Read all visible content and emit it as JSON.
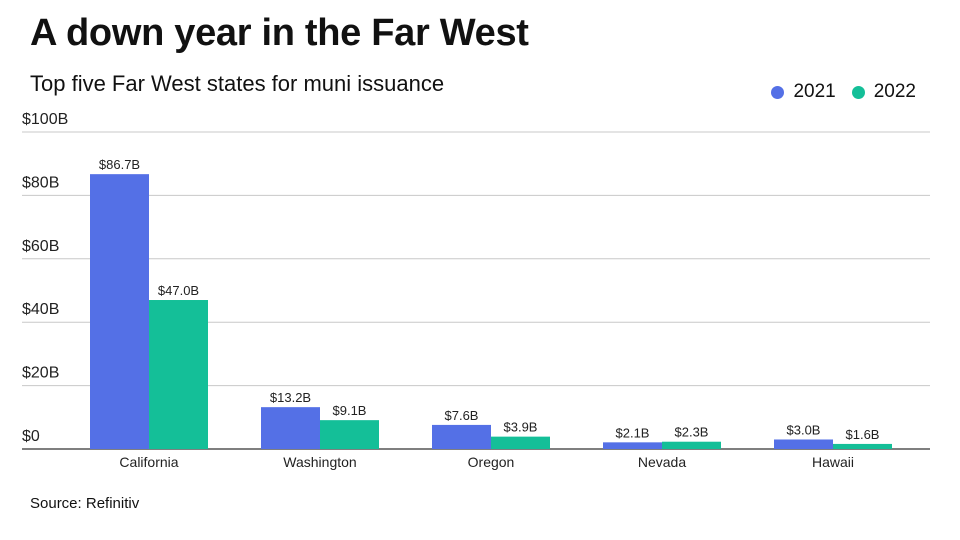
{
  "title": "A down year in the Far West",
  "subtitle": "Top five Far West states for muni issuance",
  "source": "Source: Refinitiv",
  "colors": {
    "2021": "#5470e6",
    "2022": "#14bf98",
    "grid": "#c8c8c8",
    "axis": "#333333"
  },
  "chart_data": {
    "type": "bar",
    "categories": [
      "California",
      "Washington",
      "Oregon",
      "Nevada",
      "Hawaii"
    ],
    "series": [
      {
        "name": "2021",
        "values": [
          86.7,
          13.2,
          7.6,
          2.1,
          3.0
        ],
        "labels": [
          "$86.7B",
          "$13.2B",
          "$7.6B",
          "$2.1B",
          "$3.0B"
        ],
        "color": "#5470e6"
      },
      {
        "name": "2022",
        "values": [
          47.0,
          9.1,
          3.9,
          2.3,
          1.6
        ],
        "labels": [
          "$47.0B",
          "$9.1B",
          "$3.9B",
          "$2.3B",
          "$1.6B"
        ],
        "color": "#14bf98"
      }
    ],
    "yticks": [
      0,
      20,
      40,
      60,
      80,
      100
    ],
    "ytick_labels": [
      "$0",
      "$20B",
      "$40B",
      "$60B",
      "$80B",
      "$100B"
    ],
    "ylim": [
      0,
      100
    ],
    "grid": true,
    "legend_position": "top-right"
  }
}
